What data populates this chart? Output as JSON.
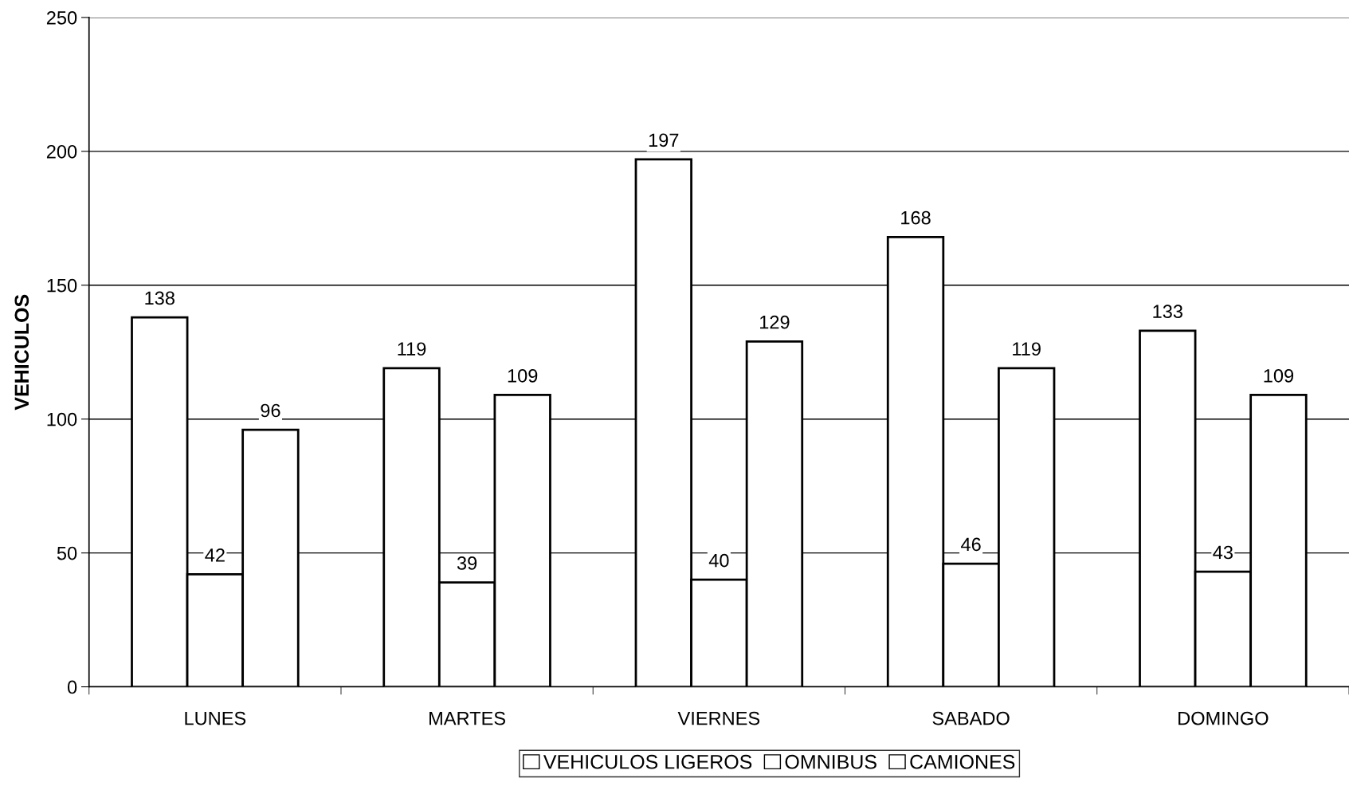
{
  "chart_data": {
    "type": "bar",
    "ylabel": "VEHICULOS",
    "categories": [
      "LUNES",
      "MARTES",
      "VIERNES",
      "SABADO",
      "DOMINGO"
    ],
    "series": [
      {
        "name": "VEHICULOS LIGEROS",
        "color": "#ffffff",
        "values": [
          138,
          119,
          197,
          168,
          133
        ]
      },
      {
        "name": "OMNIBUS",
        "color": "#ffffff",
        "values": [
          42,
          39,
          40,
          46,
          43
        ]
      },
      {
        "name": "CAMIONES",
        "color": "#ffffff",
        "values": [
          96,
          109,
          129,
          119,
          109
        ]
      }
    ],
    "ylim": [
      0,
      250
    ],
    "yticks": [
      0,
      50,
      100,
      150,
      200,
      250
    ],
    "grid": "y",
    "legend": "bottom",
    "data_labels": true
  }
}
